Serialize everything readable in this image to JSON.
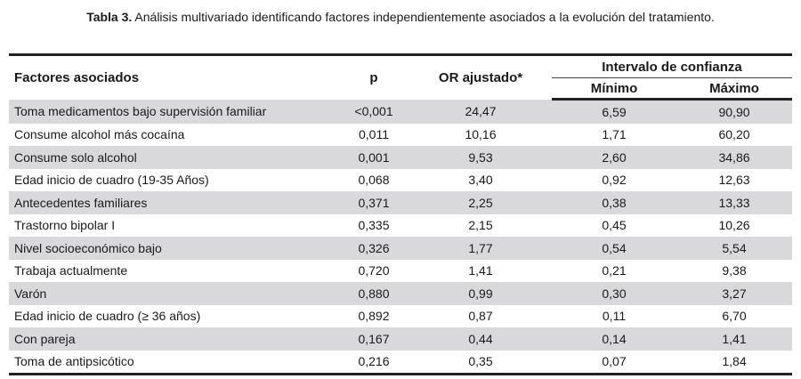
{
  "caption": {
    "label": "Tabla 3.",
    "text": "Análisis multivariado identificando factores independientemente asociados a la evolución del tratamiento."
  },
  "table": {
    "headers": {
      "factor": "Factores asociados",
      "p": "p",
      "or": "OR ajustado*",
      "interval": "Intervalo de confianza",
      "min": "Mínimo",
      "max": "Máximo"
    },
    "rows": [
      [
        "Toma medicamentos bajo supervisión familiar",
        "<0,001",
        "24,47",
        "6,59",
        "90,90"
      ],
      [
        "Consume alcohol más cocaína",
        "0,011",
        "10,16",
        "1,71",
        "60,20"
      ],
      [
        "Consume solo alcohol",
        "0,001",
        "9,53",
        "2,60",
        "34,86"
      ],
      [
        "Edad inicio de cuadro (19-35 Años)",
        "0,068",
        "3,40",
        "0,92",
        "12,63"
      ],
      [
        "Antecedentes familiares",
        "0,371",
        "2,25",
        "0,38",
        "13,33"
      ],
      [
        "Trastorno bipolar I",
        "0,335",
        "2,15",
        "0,45",
        "10,26"
      ],
      [
        "Nivel socioeconómico bajo",
        "0,326",
        "1,77",
        "0,54",
        "5,54"
      ],
      [
        "Trabaja actualmente",
        "0,720",
        "1,41",
        "0,21",
        "9,38"
      ],
      [
        "Varón",
        "0,880",
        "0,99",
        "0,30",
        "3,27"
      ],
      [
        "Edad inicio de cuadro (≥ 36 años)",
        "0,892",
        "0,87",
        "0,11",
        "6,70"
      ],
      [
        "Con pareja",
        "0,167",
        "0,44",
        "0,14",
        "1,41"
      ],
      [
        "Toma de antipsicótico",
        "0,216",
        "0,35",
        "0,07",
        "1,84"
      ]
    ]
  }
}
